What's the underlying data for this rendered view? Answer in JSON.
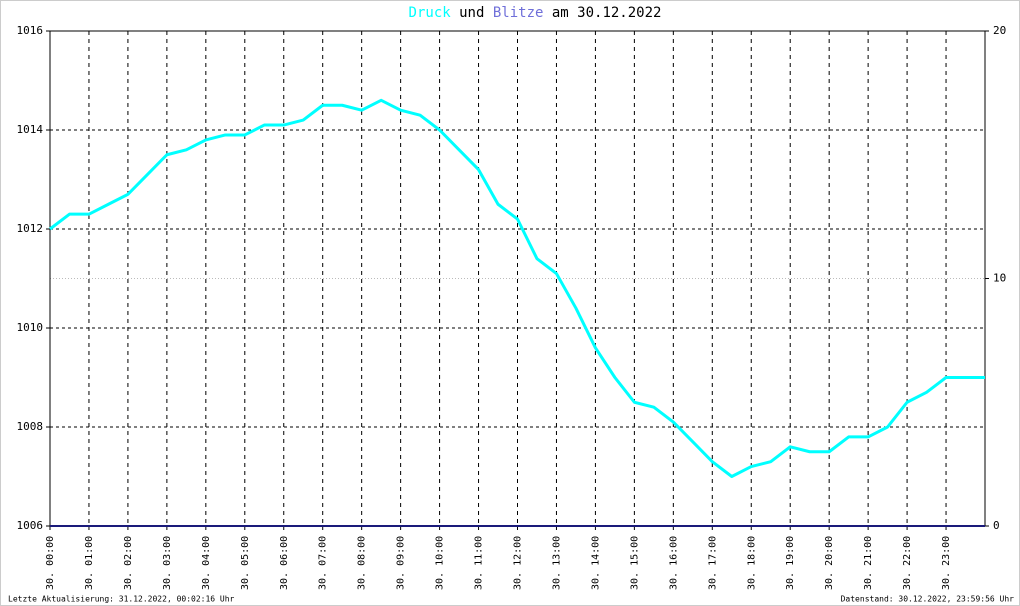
{
  "chart_data": {
    "type": "line",
    "title_joiner": "und",
    "title_date": "am 30.12.2022",
    "footer_left": "Letzte Aktualisierung: 31.12.2022, 00:02:16 Uhr",
    "footer_right": "Datenstand: 30.12.2022, 23:59:56 Uhr",
    "x": [
      0,
      0.5,
      1,
      1.5,
      2,
      2.5,
      3,
      3.5,
      4,
      4.5,
      5,
      5.5,
      6,
      6.5,
      7,
      7.5,
      8,
      8.5,
      9,
      9.5,
      10,
      10.5,
      11,
      11.5,
      12,
      12.5,
      13,
      13.5,
      14,
      14.5,
      15,
      15.5,
      16,
      16.5,
      17,
      17.5,
      18,
      18.5,
      19,
      19.5,
      20,
      20.5,
      21,
      21.5,
      22,
      22.5,
      23,
      23.5,
      24
    ],
    "xlim": [
      0,
      24
    ],
    "xticks": [
      {
        "value": 0,
        "label": "30. 00:00"
      },
      {
        "value": 1,
        "label": "30. 01:00"
      },
      {
        "value": 2,
        "label": "30. 02:00"
      },
      {
        "value": 3,
        "label": "30. 03:00"
      },
      {
        "value": 4,
        "label": "30. 04:00"
      },
      {
        "value": 5,
        "label": "30. 05:00"
      },
      {
        "value": 6,
        "label": "30. 06:00"
      },
      {
        "value": 7,
        "label": "30. 07:00"
      },
      {
        "value": 8,
        "label": "30. 08:00"
      },
      {
        "value": 9,
        "label": "30. 09:00"
      },
      {
        "value": 10,
        "label": "30. 10:00"
      },
      {
        "value": 11,
        "label": "30. 11:00"
      },
      {
        "value": 12,
        "label": "30. 12:00"
      },
      {
        "value": 13,
        "label": "30. 13:00"
      },
      {
        "value": 14,
        "label": "30. 14:00"
      },
      {
        "value": 15,
        "label": "30. 15:00"
      },
      {
        "value": 16,
        "label": "30. 16:00"
      },
      {
        "value": 17,
        "label": "30. 17:00"
      },
      {
        "value": 18,
        "label": "30. 18:00"
      },
      {
        "value": 19,
        "label": "30. 19:00"
      },
      {
        "value": 20,
        "label": "30. 20:00"
      },
      {
        "value": 21,
        "label": "30. 21:00"
      },
      {
        "value": 22,
        "label": "30. 22:00"
      },
      {
        "value": 23,
        "label": "30. 23:00"
      }
    ],
    "ylim": [
      1006,
      1016
    ],
    "yticks": [
      1006,
      1008,
      1010,
      1012,
      1014,
      1016
    ],
    "y2lim": [
      0,
      20
    ],
    "y2ticks": [
      0,
      10,
      20
    ],
    "grid": true,
    "series": [
      {
        "name": "Druck",
        "color": "#00ffff",
        "values": [
          1012.0,
          1012.3,
          1012.3,
          1012.5,
          1012.7,
          1013.1,
          1013.5,
          1013.6,
          1013.8,
          1013.9,
          1013.9,
          1014.1,
          1014.1,
          1014.2,
          1014.5,
          1014.5,
          1014.4,
          1014.6,
          1014.4,
          1014.3,
          1014.0,
          1013.6,
          1013.2,
          1012.5,
          1012.2,
          1011.4,
          1011.1,
          1010.4,
          1009.6,
          1009.0,
          1008.5,
          1008.4,
          1008.1,
          1007.7,
          1007.3,
          1007.0,
          1007.2,
          1007.3,
          1007.6,
          1007.5,
          1007.5,
          1007.8,
          1007.8,
          1008.0,
          1008.5,
          1008.7,
          1009.0,
          1009.0,
          1009.0
        ]
      },
      {
        "name": "Blitze",
        "color": "#1a1a7a",
        "axis": "y2",
        "values": [
          0,
          0,
          0,
          0,
          0,
          0,
          0,
          0,
          0,
          0,
          0,
          0,
          0,
          0,
          0,
          0,
          0,
          0,
          0,
          0,
          0,
          0,
          0,
          0,
          0,
          0,
          0,
          0,
          0,
          0,
          0,
          0,
          0,
          0,
          0,
          0,
          0,
          0,
          0,
          0,
          0,
          0,
          0,
          0,
          0,
          0,
          0,
          0,
          0
        ]
      }
    ]
  }
}
